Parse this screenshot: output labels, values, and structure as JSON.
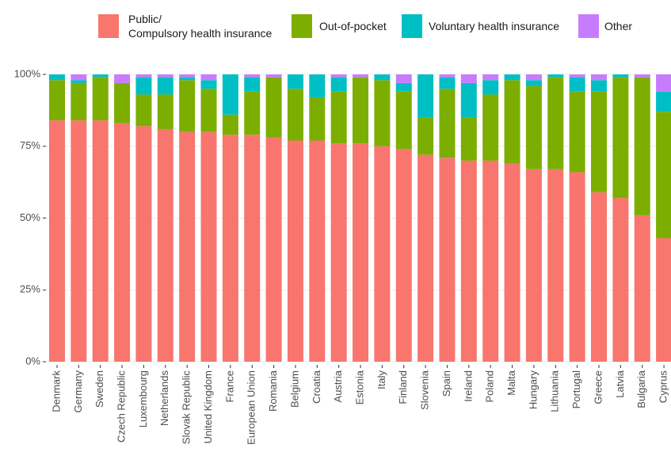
{
  "chart_data": {
    "type": "stacked_bar",
    "categories": [
      "Denmark",
      "Germany",
      "Sweden",
      "Czech Republic",
      "Luxembourg",
      "Netherlands",
      "Slovak Republic",
      "United Kingdom",
      "France",
      "European Union",
      "Romania",
      "Belgium",
      "Croatia",
      "Austria",
      "Estonia",
      "Italy",
      "Finland",
      "Slovenia",
      "Spain",
      "Ireland",
      "Poland",
      "Malta",
      "Hungary",
      "Lithuania",
      "Portugal",
      "Greece",
      "Latvia",
      "Bulgaria",
      "Cyprus"
    ],
    "series": [
      {
        "name": "Public/\nCompulsory health insurance",
        "color": "#F8766D",
        "values": [
          84,
          84,
          84,
          83,
          82,
          81,
          80,
          80,
          79,
          79,
          78,
          77,
          77,
          76,
          76,
          75,
          74,
          72,
          71,
          70,
          70,
          69,
          67,
          67,
          66,
          59,
          57,
          51,
          43
        ]
      },
      {
        "name": "Out-of-pocket",
        "color": "#7CAE00",
        "values": [
          14,
          13,
          15,
          14,
          11,
          12,
          18,
          15,
          7,
          15,
          21,
          18,
          15,
          18,
          23,
          23,
          20,
          13,
          24,
          15,
          23,
          29,
          29,
          32,
          28,
          35,
          42,
          48,
          44
        ]
      },
      {
        "name": "Voluntary health insurance",
        "color": "#00BFC4",
        "values": [
          2,
          1,
          1,
          0,
          6,
          6,
          1,
          3,
          14,
          5,
          0,
          5,
          8,
          5,
          0,
          2,
          3,
          15,
          4,
          12,
          5,
          2,
          2,
          1,
          5,
          4,
          1,
          0,
          7
        ]
      },
      {
        "name": "Other",
        "color": "#C77CFF",
        "values": [
          0,
          2,
          0,
          3,
          1,
          1,
          1,
          2,
          0,
          1,
          1,
          0,
          0,
          1,
          1,
          0,
          3,
          0,
          1,
          3,
          2,
          0,
          2,
          0,
          1,
          2,
          0,
          1,
          6
        ]
      }
    ],
    "ylim": [
      0,
      100
    ],
    "yticks": [
      {
        "value": 0,
        "label": "0%"
      },
      {
        "value": 25,
        "label": "25%"
      },
      {
        "value": 50,
        "label": "50%"
      },
      {
        "value": 75,
        "label": "75%"
      },
      {
        "value": 100,
        "label": "100%"
      }
    ],
    "grid": true,
    "legend": "top"
  }
}
